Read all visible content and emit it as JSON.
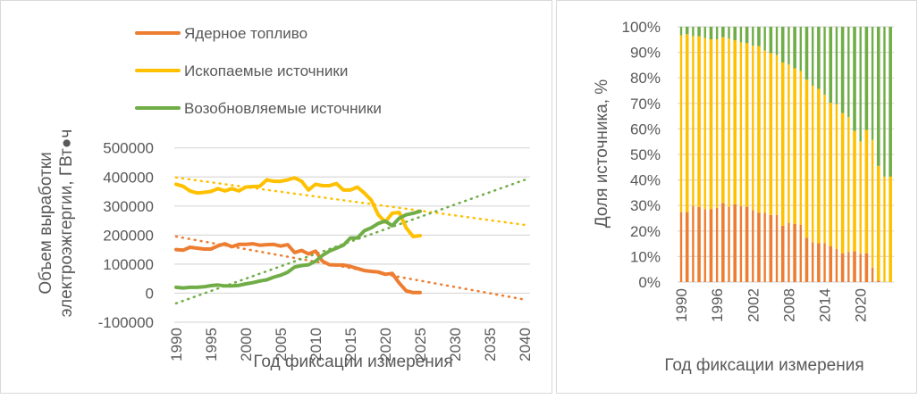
{
  "chart_data": [
    {
      "type": "line",
      "title": "",
      "xlabel": "Год фиксации измерения",
      "ylabel_lines": [
        "Объем выработки",
        "электроэжгергии, ГВт●ч"
      ],
      "xlim": [
        1990,
        2040
      ],
      "ylim": [
        -100000,
        500000
      ],
      "x_ticks": [
        "1990",
        "1995",
        "2000",
        "2005",
        "2010",
        "2015",
        "2020",
        "2025",
        "2030",
        "2035",
        "2040"
      ],
      "y_ticks": [
        "-100000",
        "0",
        "100000",
        "200000",
        "300000",
        "400000",
        "500000"
      ],
      "grid": true,
      "legend_position": "top",
      "x": [
        1990,
        1991,
        1992,
        1993,
        1994,
        1995,
        1996,
        1997,
        1998,
        1999,
        2000,
        2001,
        2002,
        2003,
        2004,
        2005,
        2006,
        2007,
        2008,
        2009,
        2010,
        2011,
        2012,
        2013,
        2014,
        2015,
        2016,
        2017,
        2018,
        2019,
        2020,
        2021,
        2022,
        2023,
        2024,
        2025
      ],
      "series": [
        {
          "name": "Ядерное топливо",
          "color": "#ED7D31",
          "values": [
            150000,
            148000,
            158000,
            155000,
            152000,
            152000,
            163000,
            170000,
            160000,
            168000,
            168000,
            170000,
            165000,
            167000,
            168000,
            162000,
            167000,
            140000,
            147000,
            135000,
            145000,
            110000,
            98000,
            97000,
            97000,
            92000,
            85000,
            78000,
            75000,
            73000,
            65000,
            68000,
            35000,
            8000,
            2000,
            2000
          ],
          "trend": {
            "type": "linear",
            "from": [
              1990,
              195000
            ],
            "to": [
              2040,
              -22000
            ]
          }
        },
        {
          "name": "Ископаемые источники",
          "color": "#FFC000",
          "values": [
            375000,
            368000,
            352000,
            345000,
            347000,
            350000,
            360000,
            352000,
            360000,
            352000,
            365000,
            367000,
            368000,
            390000,
            385000,
            385000,
            390000,
            397000,
            385000,
            355000,
            375000,
            370000,
            370000,
            377000,
            355000,
            355000,
            365000,
            345000,
            320000,
            270000,
            245000,
            275000,
            278000,
            225000,
            195000,
            198000
          ],
          "trend": {
            "type": "linear",
            "from": [
              1990,
              398000
            ],
            "to": [
              2040,
              235000
            ]
          }
        },
        {
          "name": "Возобновляемые источники",
          "color": "#70AD47",
          "values": [
            20000,
            18000,
            20000,
            20000,
            22000,
            26000,
            28000,
            25000,
            25000,
            27000,
            32000,
            36000,
            42000,
            46000,
            55000,
            62000,
            72000,
            90000,
            95000,
            98000,
            110000,
            130000,
            145000,
            155000,
            165000,
            190000,
            190000,
            215000,
            225000,
            240000,
            248000,
            232000,
            258000,
            270000,
            275000,
            282000
          ],
          "trend": {
            "type": "linear",
            "from": [
              1990,
              -35000
            ],
            "to": [
              2040,
              390000
            ]
          }
        }
      ]
    },
    {
      "type": "bar",
      "stacked": "percent",
      "title": "",
      "xlabel": "Год фиксации измерения",
      "ylabel": "Доля источника, %",
      "ylim": [
        0,
        100
      ],
      "y_ticks": [
        "0%",
        "10%",
        "20%",
        "30%",
        "40%",
        "50%",
        "60%",
        "70%",
        "80%",
        "90%",
        "100%"
      ],
      "x_ticks": [
        "1990",
        "1996",
        "2002",
        "2008",
        "2014",
        "2020"
      ],
      "grid": true,
      "categories": [
        1990,
        1991,
        1992,
        1993,
        1994,
        1995,
        1996,
        1997,
        1998,
        1999,
        2000,
        2001,
        2002,
        2003,
        2004,
        2005,
        2006,
        2007,
        2008,
        2009,
        2010,
        2011,
        2012,
        2013,
        2014,
        2015,
        2016,
        2017,
        2018,
        2019,
        2020,
        2021,
        2022,
        2023,
        2024,
        2025
      ],
      "series": [
        {
          "name": "Ядерное топливо",
          "color": "#ED7D31",
          "values": [
            27.4,
            27.4,
            29.8,
            29.4,
            28.6,
            28.6,
            29.1,
            30.9,
            29.5,
            30.5,
            29.8,
            29.5,
            28.2,
            27.1,
            27.1,
            26.3,
            26.3,
            22.1,
            23.2,
            22.8,
            22.5,
            17.4,
            15.6,
            15.2,
            15.2,
            14.1,
            13.0,
            11.3,
            11.8,
            12.1,
            11.1,
            11.3,
            5.7,
            0.6,
            0,
            0
          ]
        },
        {
          "name": "Ископаемые источники",
          "color": "#FFC000",
          "values": [
            69.3,
            69.7,
            66.5,
            66.9,
            67.0,
            66.5,
            66.0,
            65.0,
            65.9,
            64.2,
            64.1,
            64.1,
            64.4,
            65.3,
            63.6,
            63.4,
            62.6,
            63.9,
            62.0,
            60.9,
            60.2,
            61.9,
            61.3,
            60.5,
            58.2,
            56.1,
            56.7,
            54.9,
            52.8,
            47.1,
            44.0,
            48.3,
            50.0,
            44.9,
            41.3,
            41.3
          ]
        },
        {
          "name": "Возобновляемые источники",
          "color": "#70AD47",
          "values": [
            3.3,
            2.9,
            3.7,
            3.7,
            4.4,
            4.9,
            4.9,
            4.1,
            4.6,
            5.3,
            6.1,
            6.4,
            7.4,
            7.6,
            9.3,
            10.3,
            11.1,
            14.0,
            14.8,
            16.3,
            17.3,
            20.7,
            23.1,
            24.3,
            26.6,
            29.8,
            30.3,
            33.8,
            35.4,
            40.8,
            44.9,
            40.4,
            44.3,
            54.5,
            58.7,
            58.7
          ]
        }
      ]
    }
  ]
}
